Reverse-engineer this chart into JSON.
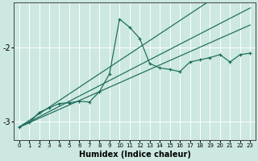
{
  "xlabel": "Humidex (Indice chaleur)",
  "bg_color": "#cce8e0",
  "line_color": "#1a6b5a",
  "grid_color": "#ffffff",
  "x": [
    0,
    1,
    2,
    3,
    4,
    5,
    6,
    7,
    8,
    9,
    10,
    11,
    12,
    13,
    14,
    15,
    16,
    17,
    18,
    19,
    20,
    21,
    22,
    23
  ],
  "y_main": [
    -3.08,
    -3.02,
    -2.88,
    -2.82,
    -2.76,
    -2.75,
    -2.73,
    -2.74,
    -2.6,
    -2.36,
    -1.62,
    -1.73,
    -1.88,
    -2.22,
    -2.28,
    -2.3,
    -2.33,
    -2.2,
    -2.17,
    -2.14,
    -2.1,
    -2.2,
    -2.1,
    -2.08
  ],
  "y_line1": [
    -3.08,
    -3.02,
    -2.96,
    -2.9,
    -2.84,
    -2.78,
    -2.72,
    -2.66,
    -2.6,
    -2.54,
    -2.48,
    -2.42,
    -2.36,
    -2.3,
    -2.24,
    -2.18,
    -2.12,
    -2.06,
    -2.0,
    -1.94,
    -1.88,
    -1.82,
    -1.76,
    -1.7
  ],
  "y_line2": [
    -3.08,
    -3.01,
    -2.94,
    -2.87,
    -2.8,
    -2.73,
    -2.66,
    -2.59,
    -2.52,
    -2.45,
    -2.38,
    -2.31,
    -2.24,
    -2.17,
    -2.1,
    -2.03,
    -1.96,
    -1.89,
    -1.82,
    -1.75,
    -1.68,
    -1.61,
    -1.54,
    -1.47
  ],
  "y_line3": [
    -3.08,
    -2.99,
    -2.9,
    -2.81,
    -2.72,
    -2.63,
    -2.54,
    -2.45,
    -2.36,
    -2.27,
    -2.18,
    -2.09,
    -2.0,
    -1.91,
    -1.82,
    -1.73,
    -1.64,
    -1.55,
    -1.46,
    -1.37,
    -1.28,
    -1.19,
    -1.1,
    -1.01
  ],
  "ylim": [
    -3.25,
    -1.4
  ],
  "xlim": [
    -0.5,
    23.5
  ],
  "yticks": [
    -3,
    -2
  ],
  "xticks": [
    0,
    1,
    2,
    3,
    4,
    5,
    6,
    7,
    8,
    9,
    10,
    11,
    12,
    13,
    14,
    15,
    16,
    17,
    18,
    19,
    20,
    21,
    22,
    23
  ]
}
